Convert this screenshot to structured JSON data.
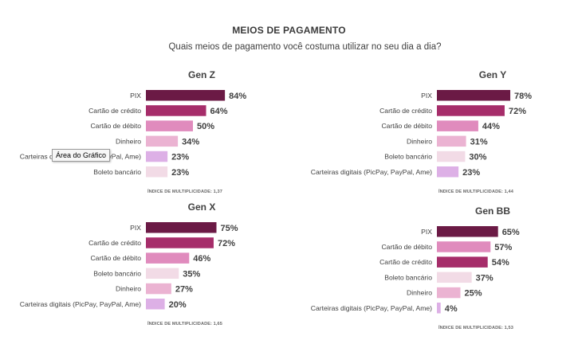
{
  "header": {
    "title": "MEIOS DE PAGAMENTO",
    "subtitle": "Quais meios de pagamento você costuma utilizar no seu dia a dia?"
  },
  "tooltip": {
    "label": "Área do Gráfico"
  },
  "colors": {
    "PIX": "#6b1a45",
    "Cartão de crédito": "#a62d6a",
    "Cartão de débito": "#e08bbd",
    "Dinheiro": "#ebb3d2",
    "Carteiras digitais (PicPay, PayPal, Ame)": "#ddb0e6",
    "Boleto bancário": "#f2dbe6"
  },
  "chart_data": [
    {
      "type": "bar",
      "orientation": "horizontal",
      "title": "Gen Z",
      "categories": [
        "PIX",
        "Cartão de crédito",
        "Cartão de débito",
        "Dinheiro",
        "Carteiras digitais (PicPay, PayPal, Ame)",
        "Boleto bancário"
      ],
      "values": [
        84,
        64,
        50,
        34,
        23,
        23
      ],
      "value_labels": [
        "84%",
        "64%",
        "50%",
        "34%",
        "23%",
        "23%"
      ],
      "footnote": "ÍNDICE DE MULTIPLICIDADE: 1,37",
      "xlim": [
        0,
        100
      ]
    },
    {
      "type": "bar",
      "orientation": "horizontal",
      "title": "Gen Y",
      "categories": [
        "PIX",
        "Cartão de crédito",
        "Cartão de débito",
        "Dinheiro",
        "Boleto bancário",
        "Carteiras digitais (PicPay, PayPal, Ame)"
      ],
      "values": [
        78,
        72,
        44,
        31,
        30,
        23
      ],
      "value_labels": [
        "78%",
        "72%",
        "44%",
        "31%",
        "30%",
        "23%"
      ],
      "footnote": "ÍNDICE DE MULTIPLICIDADE: 1,44",
      "xlim": [
        0,
        100
      ]
    },
    {
      "type": "bar",
      "orientation": "horizontal",
      "title": "Gen X",
      "categories": [
        "PIX",
        "Cartão de crédito",
        "Cartão de débito",
        "Boleto bancário",
        "Dinheiro",
        "Carteiras digitais (PicPay, PayPal, Ame)"
      ],
      "values": [
        75,
        72,
        46,
        35,
        27,
        20
      ],
      "value_labels": [
        "75%",
        "72%",
        "46%",
        "35%",
        "27%",
        "20%"
      ],
      "footnote": "ÍNDICE DE MULTIPLICIDADE: 1,65",
      "xlim": [
        0,
        100
      ]
    },
    {
      "type": "bar",
      "orientation": "horizontal",
      "title": "Gen BB",
      "categories": [
        "PIX",
        "Cartão de débito",
        "Cartão de crédito",
        "Boleto bancário",
        "Dinheiro",
        "Carteiras digitais (PicPay, PayPal, Ame)"
      ],
      "values": [
        65,
        57,
        54,
        37,
        25,
        4
      ],
      "value_labels": [
        "65%",
        "57%",
        "54%",
        "37%",
        "25%",
        "4%"
      ],
      "footnote": "ÍNDICE DE MULTIPLICIDADE: 1,53",
      "xlim": [
        0,
        100
      ]
    }
  ]
}
